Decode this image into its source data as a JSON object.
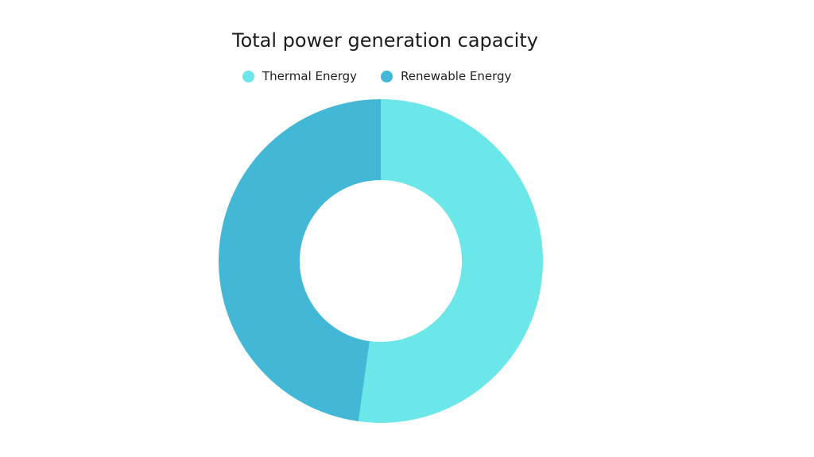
{
  "chart_data": {
    "type": "pie",
    "title": "Total power generation capacity",
    "donut": true,
    "categories": [
      "Thermal Energy",
      "Renewable Energy"
    ],
    "values": [
      52.2,
      47.8
    ],
    "colors": [
      "#6be6e9",
      "#43b8d6"
    ],
    "legend_position": "top-center",
    "start_angle": "top, clockwise"
  }
}
